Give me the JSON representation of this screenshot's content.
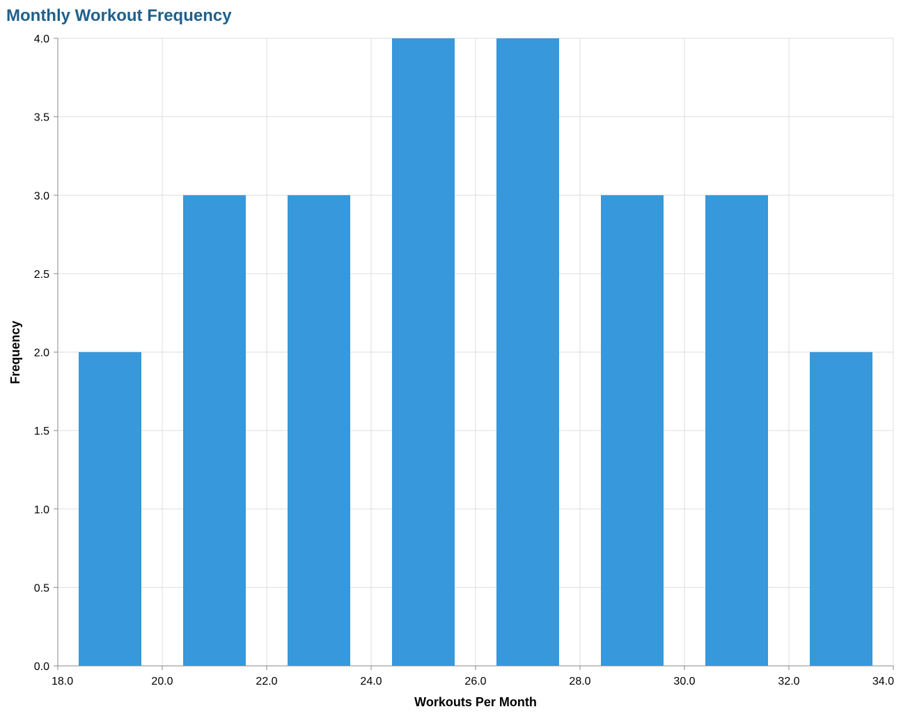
{
  "chart_data": {
    "type": "bar",
    "title": "Monthly Workout Frequency",
    "xlabel": "Workouts Per Month",
    "ylabel": "Frequency",
    "bins": [
      {
        "start": 18.0,
        "end": 20.0,
        "count": 2
      },
      {
        "start": 20.0,
        "end": 22.0,
        "count": 3
      },
      {
        "start": 22.0,
        "end": 24.0,
        "count": 3
      },
      {
        "start": 24.0,
        "end": 26.0,
        "count": 4
      },
      {
        "start": 26.0,
        "end": 28.0,
        "count": 4
      },
      {
        "start": 28.0,
        "end": 30.0,
        "count": 3
      },
      {
        "start": 30.0,
        "end": 32.0,
        "count": 3
      },
      {
        "start": 32.0,
        "end": 34.0,
        "count": 2
      }
    ],
    "xlim": [
      18,
      34
    ],
    "ylim": [
      0,
      4
    ],
    "x_ticks": [
      "18.0",
      "20.0",
      "22.0",
      "24.0",
      "26.0",
      "28.0",
      "30.0",
      "32.0",
      "34.0"
    ],
    "y_ticks": [
      "0.0",
      "0.5",
      "1.0",
      "1.5",
      "2.0",
      "2.5",
      "3.0",
      "3.5",
      "4.0"
    ],
    "grid": true,
    "colors": {
      "bar": "#3798db",
      "title": "#1f5f8b",
      "grid": "#dddddd",
      "axis": "#888888"
    }
  }
}
